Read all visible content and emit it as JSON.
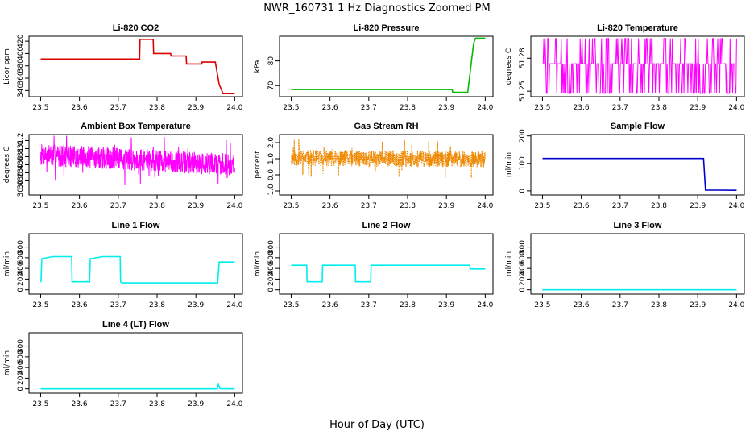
{
  "figure": {
    "title": "NWR_160731  1 Hz Diagnostics Zoomed PM",
    "xlabel": "Hour of Day (UTC)"
  },
  "chart_data": [
    {
      "type": "line",
      "title": "Li-820 CO2",
      "ylabel": "Licor ppm",
      "color": "#dd0000",
      "xlim": [
        23.47,
        24.02
      ],
      "ylim": [
        330,
        428
      ],
      "xticks": [
        23.5,
        23.6,
        23.7,
        23.8,
        23.9,
        24.0
      ],
      "xtick_labels": [
        "23.5",
        "23.6",
        "23.7",
        "23.8",
        "23.9",
        "24.0"
      ],
      "yticks": [
        340,
        360,
        380,
        400,
        420
      ],
      "ytick_labels": [
        "340",
        "360",
        "380",
        "400",
        "420"
      ],
      "series": [
        {
          "x": [
            23.5,
            23.755,
            23.756,
            23.79,
            23.791,
            23.835,
            23.836,
            23.875,
            23.876,
            23.915,
            23.916,
            23.95,
            23.96,
            23.97,
            24.0
          ],
          "y": [
            391,
            391,
            423,
            423,
            400,
            400,
            396,
            396,
            383,
            383,
            386,
            386,
            350,
            335,
            335
          ]
        }
      ]
    },
    {
      "type": "line",
      "title": "Li-820 Pressure",
      "ylabel": "kPa",
      "color": "#00bb00",
      "xlim": [
        23.47,
        24.02
      ],
      "ylim": [
        65.5,
        90
      ],
      "xticks": [
        23.5,
        23.6,
        23.7,
        23.8,
        23.9,
        24.0
      ],
      "xtick_labels": [
        "23.5",
        "23.6",
        "23.7",
        "23.8",
        "23.9",
        "24.0"
      ],
      "yticks": [
        70,
        80
      ],
      "ytick_labels": [
        "70",
        "80"
      ],
      "series": [
        {
          "x": [
            23.5,
            23.915,
            23.916,
            23.955,
            23.97,
            23.975,
            24.0
          ],
          "y": [
            68.4,
            68.4,
            67.3,
            67.3,
            87.0,
            89.2,
            89.2
          ]
        }
      ]
    },
    {
      "type": "line",
      "title": "Li-820 Temperature",
      "ylabel": "degrees C",
      "color": "#ff00ff",
      "xlim": [
        23.47,
        24.02
      ],
      "ylim": [
        51.245,
        51.3
      ],
      "xticks": [
        23.5,
        23.6,
        23.7,
        23.8,
        23.9,
        24.0
      ],
      "xtick_labels": [
        "23.5",
        "23.6",
        "23.7",
        "23.8",
        "23.9",
        "24.0"
      ],
      "yticks": [
        51.25,
        51.28
      ],
      "ytick_labels": [
        "51.25",
        "51.28"
      ],
      "pattern": {
        "kind": "square",
        "levels": [
          51.248,
          51.275,
          51.298
        ],
        "n": 300,
        "seed": 3
      }
    },
    {
      "type": "line",
      "title": "Ambient Box Temperature",
      "ylabel": "degrees C",
      "color": "#ff00ff",
      "xlim": [
        23.47,
        24.02
      ],
      "ylim": [
        29.85,
        31.35
      ],
      "xticks": [
        23.5,
        23.6,
        23.7,
        23.8,
        23.9,
        24.0
      ],
      "xtick_labels": [
        "23.5",
        "23.6",
        "23.7",
        "23.8",
        "23.9",
        "24.0"
      ],
      "yticks": [
        30.0,
        30.2,
        30.4,
        30.6,
        30.8,
        31.0,
        31.2
      ],
      "ytick_labels": [
        "30.0",
        "30.2",
        "30.4",
        "30.6",
        "30.8",
        "31.0",
        "31.2"
      ],
      "pattern": {
        "kind": "noise",
        "n": 900,
        "seed": 7,
        "center_start": 30.85,
        "center_end": 30.6,
        "spread": 0.55,
        "min": 29.95,
        "max": 31.32
      }
    },
    {
      "type": "line",
      "title": "Gas Stream RH",
      "ylabel": "percent",
      "color": "#ee8800",
      "xlim": [
        23.47,
        24.02
      ],
      "ylim": [
        -1.25,
        2.5
      ],
      "xticks": [
        23.5,
        23.6,
        23.7,
        23.8,
        23.9,
        24.0
      ],
      "xtick_labels": [
        "23.5",
        "23.6",
        "23.7",
        "23.8",
        "23.9",
        "24.0"
      ],
      "yticks": [
        -1.0,
        0.0,
        1.0,
        2.0
      ],
      "ytick_labels": [
        "-1.0",
        "0.0",
        "1.0",
        "2.0"
      ],
      "pattern": {
        "kind": "noise",
        "n": 1000,
        "seed": 11,
        "center_start": 1.05,
        "center_end": 0.95,
        "spread": 1.0,
        "min": -1.1,
        "max": 2.3,
        "dotted": true
      }
    },
    {
      "type": "line",
      "title": "Sample Flow",
      "ylabel": "ml/min",
      "color": "#0000cc",
      "xlim": [
        23.47,
        24.02
      ],
      "ylim": [
        -15,
        205
      ],
      "xticks": [
        23.5,
        23.6,
        23.7,
        23.8,
        23.9,
        24.0
      ],
      "xtick_labels": [
        "23.5",
        "23.6",
        "23.7",
        "23.8",
        "23.9",
        "24.0"
      ],
      "yticks": [
        0,
        100,
        200
      ],
      "ytick_labels": [
        "0",
        "100",
        "200"
      ],
      "series": [
        {
          "x": [
            23.5,
            23.915,
            23.92,
            24.0
          ],
          "y": [
            118,
            118,
            3,
            2
          ]
        }
      ]
    },
    {
      "type": "line",
      "title": "Line 1 Flow",
      "ylabel": "ml/min",
      "color": "#00eeee",
      "xlim": [
        23.47,
        24.02
      ],
      "ylim": [
        -80,
        1050
      ],
      "xticks": [
        23.5,
        23.6,
        23.7,
        23.8,
        23.9,
        24.0
      ],
      "xtick_labels": [
        "23.5",
        "23.6",
        "23.7",
        "23.8",
        "23.9",
        "24.0"
      ],
      "yticks": [
        0,
        200,
        400,
        600,
        800
      ],
      "ytick_labels": [
        "0",
        "200",
        "400",
        "600",
        "800"
      ],
      "series": [
        {
          "x": [
            23.5,
            23.501,
            23.503,
            23.53,
            23.575,
            23.58,
            23.581,
            23.625,
            23.626,
            23.628,
            23.66,
            23.705,
            23.706,
            23.709,
            23.955,
            23.956,
            23.96,
            24.0
          ],
          "y": [
            150,
            150,
            580,
            620,
            620,
            620,
            150,
            150,
            150,
            580,
            620,
            620,
            150,
            130,
            130,
            130,
            520,
            520
          ]
        }
      ]
    },
    {
      "type": "line",
      "title": "Line 2 Flow",
      "ylabel": "ml/min",
      "color": "#00eeee",
      "xlim": [
        23.47,
        24.02
      ],
      "ylim": [
        -80,
        1050
      ],
      "xticks": [
        23.5,
        23.6,
        23.7,
        23.8,
        23.9,
        24.0
      ],
      "xtick_labels": [
        "23.5",
        "23.6",
        "23.7",
        "23.8",
        "23.9",
        "24.0"
      ],
      "yticks": [
        0,
        200,
        400,
        600,
        800
      ],
      "ytick_labels": [
        "0",
        "200",
        "400",
        "600",
        "800"
      ],
      "series": [
        {
          "x": [
            23.5,
            23.54,
            23.541,
            23.58,
            23.581,
            23.665,
            23.666,
            23.705,
            23.706,
            23.96,
            23.961,
            24.0
          ],
          "y": [
            460,
            460,
            150,
            150,
            460,
            460,
            150,
            150,
            460,
            460,
            390,
            390
          ]
        }
      ]
    },
    {
      "type": "line",
      "title": "Line 3 Flow",
      "ylabel": "ml/min",
      "color": "#00eeee",
      "xlim": [
        23.47,
        24.02
      ],
      "ylim": [
        -80,
        1050
      ],
      "xticks": [
        23.5,
        23.6,
        23.7,
        23.8,
        23.9,
        24.0
      ],
      "xtick_labels": [
        "23.5",
        "23.6",
        "23.7",
        "23.8",
        "23.9",
        "24.0"
      ],
      "yticks": [
        0,
        200,
        400,
        600,
        800
      ],
      "ytick_labels": [
        "0",
        "200",
        "400",
        "600",
        "800"
      ],
      "series": [
        {
          "x": [
            23.5,
            24.0
          ],
          "y": [
            0,
            0
          ]
        }
      ]
    },
    {
      "type": "line",
      "title": "Line 4 (LT) Flow",
      "ylabel": "ml/min",
      "color": "#00eeee",
      "xlim": [
        23.47,
        24.02
      ],
      "ylim": [
        -80,
        1050
      ],
      "xticks": [
        23.5,
        23.6,
        23.7,
        23.8,
        23.9,
        24.0
      ],
      "xtick_labels": [
        "23.5",
        "23.6",
        "23.7",
        "23.8",
        "23.9",
        "24.0"
      ],
      "yticks": [
        0,
        200,
        400,
        600,
        800
      ],
      "ytick_labels": [
        "0",
        "200",
        "400",
        "600",
        "800"
      ],
      "series": [
        {
          "x": [
            23.5,
            23.955,
            23.958,
            23.962,
            24.0
          ],
          "y": [
            0,
            0,
            80,
            5,
            0
          ]
        }
      ]
    }
  ]
}
